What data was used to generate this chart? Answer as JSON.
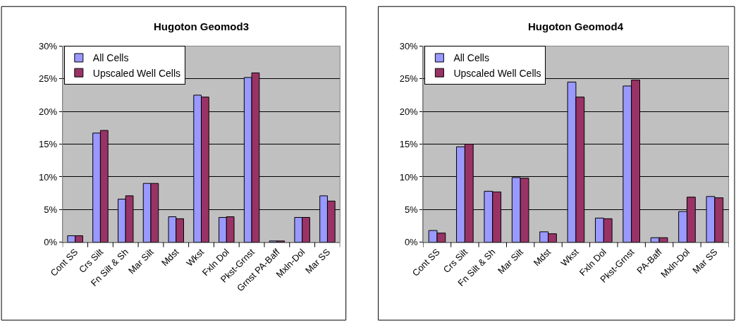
{
  "chart_data": [
    {
      "type": "bar",
      "title": "Hugoton Geomod3",
      "categories": [
        "Cont SS",
        "Crs Silt",
        "Fn Silt & Sh",
        "Mar Silt",
        "Mdst",
        "Wkst",
        "Fxln Dol",
        "Pkst-Grnst",
        "Grnst PA-Baff",
        "Mxln-Dol",
        "Mar SS"
      ],
      "series": [
        {
          "name": "All Cells",
          "color": "#9999ff",
          "values": [
            1.0,
            16.7,
            6.6,
            9.0,
            3.9,
            22.5,
            3.8,
            25.2,
            0.2,
            3.8,
            7.1
          ]
        },
        {
          "name": "Upscaled Well Cells",
          "color": "#993366",
          "values": [
            1.0,
            17.1,
            7.1,
            9.0,
            3.6,
            22.2,
            3.9,
            25.9,
            0.2,
            3.8,
            6.3
          ]
        }
      ],
      "ylim": [
        0,
        30
      ],
      "yticks": [
        {
          "value": 0,
          "label": "0%"
        },
        {
          "value": 5,
          "label": "5%"
        },
        {
          "value": 10,
          "label": "10%"
        },
        {
          "value": 15,
          "label": "15%"
        },
        {
          "value": 20,
          "label": "20%"
        },
        {
          "value": 25,
          "label": "25%"
        },
        {
          "value": 30,
          "label": "30%"
        }
      ],
      "grid": "y",
      "legend": "top left"
    },
    {
      "type": "bar",
      "title": "Hugoton Geomod4",
      "categories": [
        "Cont SS",
        "Crs Silt",
        "Fn Silt & Sh",
        "Mar Silt",
        "Mdst",
        "Wkst",
        "Fxln Dol",
        "Pkst-Grnst",
        "PA-Baff",
        "Mxln-Dol",
        "Mar SS"
      ],
      "series": [
        {
          "name": "All Cells",
          "color": "#9999ff",
          "values": [
            1.8,
            14.6,
            7.8,
            9.9,
            1.6,
            24.5,
            3.7,
            23.9,
            0.7,
            4.7,
            7.0
          ]
        },
        {
          "name": "Upscaled Well Cells",
          "color": "#993366",
          "values": [
            1.4,
            15.0,
            7.7,
            9.8,
            1.3,
            22.2,
            3.6,
            24.8,
            0.7,
            6.9,
            6.8
          ]
        }
      ],
      "ylim": [
        0,
        30
      ],
      "yticks": [
        {
          "value": 0,
          "label": "0%"
        },
        {
          "value": 5,
          "label": "5%"
        },
        {
          "value": 10,
          "label": "10%"
        },
        {
          "value": 15,
          "label": "15%"
        },
        {
          "value": 20,
          "label": "20%"
        },
        {
          "value": 25,
          "label": "25%"
        },
        {
          "value": 30,
          "label": "30%"
        }
      ],
      "grid": "y",
      "legend": "top left"
    }
  ]
}
